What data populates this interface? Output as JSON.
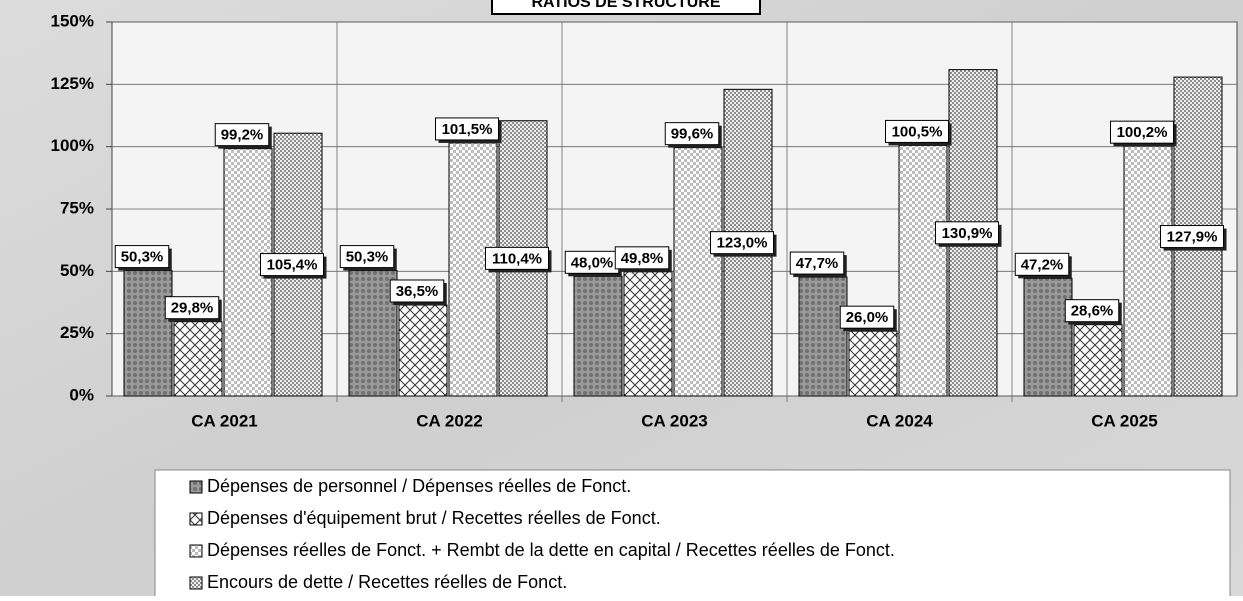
{
  "chart_data": {
    "type": "bar",
    "title": "RATIOS DE STRUCTURE",
    "categories": [
      "CA 2021",
      "CA 2022",
      "CA 2023",
      "CA 2024",
      "CA 2025"
    ],
    "series": [
      {
        "name": "Dépenses de personnel / Dépenses réelles de Fonct.",
        "color": "#9a9a9a",
        "values": [
          50.3,
          50.3,
          48.0,
          47.7,
          47.2
        ],
        "value_labels": [
          "50,3%",
          "50,3%",
          "48,0%",
          "47,7%",
          "47,2%"
        ]
      },
      {
        "name": "Dépenses d'équipement brut / Recettes réelles de Fonct.",
        "color": "#ffffff",
        "values": [
          29.8,
          36.5,
          49.8,
          26.0,
          28.6
        ],
        "value_labels": [
          "29,8%",
          "36,5%",
          "49,8%",
          "26,0%",
          "28,6%"
        ]
      },
      {
        "name": "Dépenses réelles de Fonct. + Rembt de la dette en capital / Recettes réelles de Fonct.",
        "color": "#bcbcbc",
        "values": [
          99.2,
          101.5,
          99.6,
          100.5,
          100.2
        ],
        "value_labels": [
          "99,2%",
          "101,5%",
          "99,6%",
          "100,5%",
          "100,2%"
        ]
      },
      {
        "name": "Encours de dette / Recettes réelles de Fonct.",
        "color": "#8c8c8c",
        "values": [
          105.4,
          110.4,
          123.0,
          130.9,
          127.9
        ],
        "value_labels": [
          "105,4%",
          "110,4%",
          "123,0%",
          "130,9%",
          "127,9%"
        ]
      }
    ],
    "ylim": [
      0,
      150
    ],
    "yticks": [
      {
        "value": 0,
        "label": "0%"
      },
      {
        "value": 25,
        "label": "25%"
      },
      {
        "value": 50,
        "label": "50%"
      },
      {
        "value": 75,
        "label": "75%"
      },
      {
        "value": 100,
        "label": "100%"
      },
      {
        "value": 125,
        "label": "125%"
      },
      {
        "value": 150,
        "label": "150%"
      }
    ],
    "grid": true
  }
}
